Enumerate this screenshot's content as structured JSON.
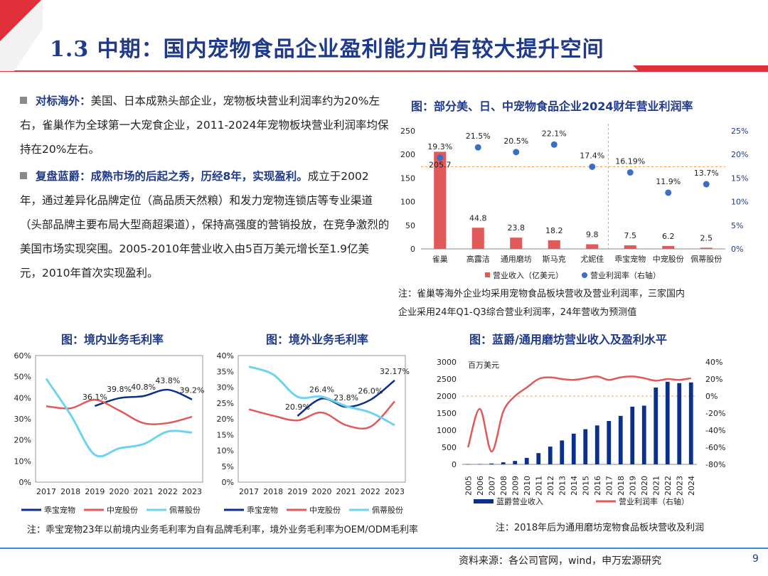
{
  "header": {
    "title": "1.3 中期：国内宠物食品企业盈利能力尚有较大提升空间"
  },
  "paragraphs": [
    {
      "lead": "对标海外：",
      "text": "美国、日本成熟头部企业，宠物板块营业利润率约为20%左右，雀巢作为全球第一大宠食企业，2011-2024年宠物板块营业利润率均保持在20%左右。"
    },
    {
      "lead": "复盘蓝爵：成熟市场的后起之秀，历经8年，实现盈利。",
      "text": "成立于2002年，通过差异化品牌定位（高品质天然粮）和发力宠物连锁店等专业渠道（头部品牌主要布局大型商超渠道），保持高强度的营销投放，在竞争激烈的美国市场实现突围。2005-2010年营业收入由5百万美元增长至1.9亿美元，2010年首次实现盈利。"
    }
  ],
  "chart_titles": {
    "main": "图：部分美、日、中宠物食品企业2024财年营业利润率",
    "domestic": "图：境内业务毛利率",
    "overseas": "图：境外业务毛利率",
    "blue": "图：蓝爵/通用磨坊营业收入及盈利水平"
  },
  "notes": {
    "main_line1": "注：雀巢等海外企业均采用宠物食品板块营收及营业利润率，三家国内",
    "main_line2": "企业采用24年Q1-Q3综合营业利润率，24年营收为预测值",
    "margin": "注：乖宝宠物23年以前境内业务毛利率为自有品牌毛利率，境外业务毛利率为OEM/ODM毛利率",
    "blue": "注：2018年后为通用磨坊宠物食品板块营收及利润"
  },
  "footer": {
    "source": "资料来源：各公司官网，wind，申万宏源研究",
    "page": "9"
  },
  "colors": {
    "blue": "#1f3a8a",
    "red": "#e05a5a",
    "dot": "#3a6fc6",
    "cyan": "#6dd3f0",
    "navy": "#0a2f8c",
    "orange": "#f0a35a"
  },
  "chart_data": [
    {
      "id": "main",
      "type": "bar",
      "categories": [
        "雀巢",
        "高露洁",
        "通用磨坊",
        "斯马克",
        "尤妮佳",
        "乖宝宠物",
        "中宠股份",
        "佩蒂股份"
      ],
      "series": [
        {
          "name": "营业收入（亿美元）",
          "values": [
            205.7,
            44.8,
            23.8,
            18.2,
            9.8,
            7.5,
            6.2,
            2.5
          ],
          "labels": [
            "205.7",
            "44.8",
            "23.8",
            "18.2",
            "9.8",
            "7.5",
            "6.2",
            "2.5"
          ]
        },
        {
          "name": "营业利润率（右轴）",
          "axis": "right",
          "values": [
            19.3,
            21.5,
            20.5,
            22.1,
            17.4,
            16.19,
            11.9,
            13.7
          ],
          "labels": [
            "19.3%",
            "21.5%",
            "20.5%",
            "22.1%",
            "17.4%",
            "16.19%",
            "11.9%",
            "13.7%"
          ]
        }
      ],
      "ylim": [
        0,
        250
      ],
      "yticks": [
        "0",
        "50",
        "100",
        "150",
        "200",
        "250"
      ],
      "ylim_right": [
        0,
        25
      ],
      "yticks_right": [
        "0%",
        "5%",
        "10%",
        "15%",
        "20%",
        "25%"
      ],
      "legend": "bottom"
    },
    {
      "id": "domestic",
      "type": "line",
      "x": [
        "2017",
        "2018",
        "2019",
        "2020",
        "2021",
        "2022",
        "2023"
      ],
      "ylim": [
        0,
        60
      ],
      "yticks": [
        "0%",
        "10%",
        "20%",
        "30%",
        "40%",
        "50%",
        "60%"
      ],
      "series": [
        {
          "name": "乖宝宠物",
          "values": [
            null,
            null,
            36.1,
            39.8,
            40.8,
            43.8,
            39.2
          ],
          "labels": [
            "",
            "",
            "36.1%",
            "39.8%",
            "40.8%",
            "43.8%",
            "39.2%"
          ]
        },
        {
          "name": "中宠股份",
          "values": [
            36,
            35,
            39,
            34,
            28,
            28,
            31
          ]
        },
        {
          "name": "佩蒂股份",
          "values": [
            49,
            32,
            13,
            16,
            18,
            24,
            23.5
          ]
        }
      ],
      "legend": "bottom"
    },
    {
      "id": "overseas",
      "type": "line",
      "x": [
        "2017",
        "2018",
        "2019",
        "2020",
        "2021",
        "2022",
        "2023"
      ],
      "ylim": [
        0,
        40
      ],
      "yticks": [
        "0%",
        "5%",
        "10%",
        "15%",
        "20%",
        "25%",
        "30%",
        "35%",
        "40%"
      ],
      "series": [
        {
          "name": "乖宝宠物",
          "values": [
            null,
            null,
            20.9,
            26.4,
            23.8,
            26.0,
            32.17
          ],
          "labels": [
            "",
            "",
            "20.9%",
            "26.4%",
            "23.8%",
            "26.0%",
            "32.17%"
          ]
        },
        {
          "name": "中宠股份",
          "values": [
            23,
            21,
            19.5,
            22,
            18,
            17.5,
            25.5
          ]
        },
        {
          "name": "佩蒂股份",
          "values": [
            36.5,
            34,
            27,
            27,
            24,
            22,
            18
          ]
        }
      ],
      "legend": "bottom"
    },
    {
      "id": "blue",
      "type": "bar",
      "categories": [
        "2005",
        "2006",
        "2007",
        "2008",
        "2009",
        "2010",
        "2011",
        "2012",
        "2013",
        "2014",
        "2015",
        "2016",
        "2017",
        "2018",
        "2019",
        "2020",
        "2021",
        "2022",
        "2023",
        "2024"
      ],
      "unit_label": "百万美元",
      "series": [
        {
          "name": "蓝爵营业收入",
          "values": [
            5,
            10,
            25,
            60,
            100,
            190,
            330,
            520,
            700,
            900,
            1030,
            1140,
            1270,
            1420,
            1690,
            1720,
            2250,
            2420,
            2380,
            2400
          ]
        },
        {
          "name": "营业利润率（右轴）",
          "axis": "right",
          "type": "line",
          "values": [
            -60,
            -15,
            -65,
            -18,
            0,
            10,
            20,
            22,
            20,
            19,
            21,
            23,
            19,
            22,
            23,
            21,
            18,
            20,
            19,
            21
          ]
        }
      ],
      "ylim": [
        0,
        3000
      ],
      "yticks": [
        "0",
        "500",
        "1000",
        "1500",
        "2000",
        "2500",
        "3000"
      ],
      "ylim_right": [
        -80,
        40
      ],
      "yticks_right": [
        "-80%",
        "-60%",
        "-40%",
        "-20%",
        "0%",
        "20%",
        "40%"
      ],
      "legend": "bottom"
    }
  ]
}
